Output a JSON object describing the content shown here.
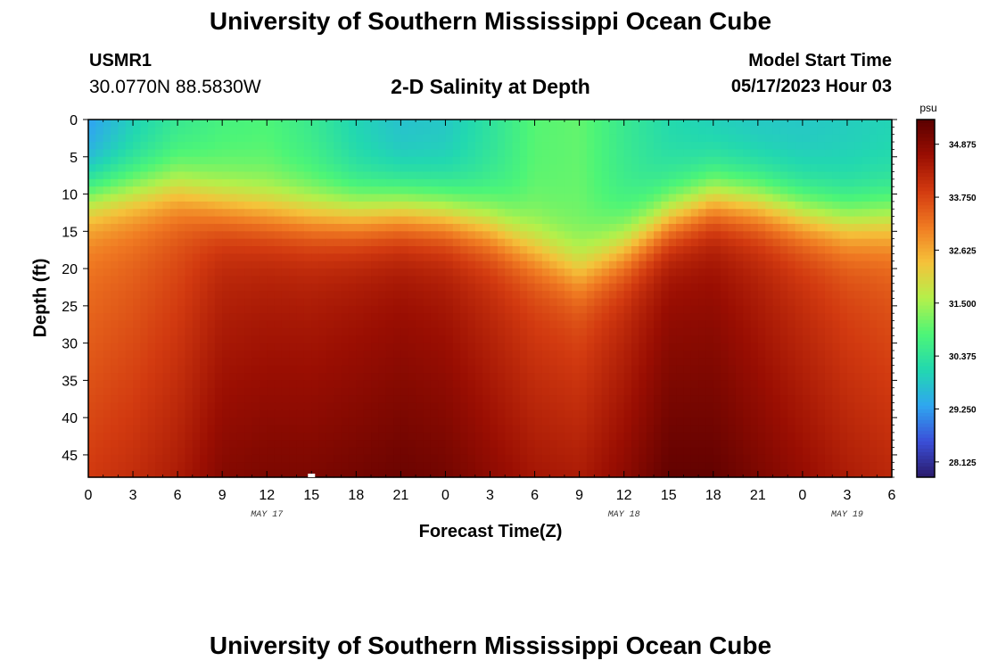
{
  "header": {
    "title": "University of Southern Mississippi Ocean Cube",
    "station_id": "USMR1",
    "coordinates": "30.0770N  88.5830W",
    "subtitle": "2-D Salinity at Depth",
    "model_start_label": "Model Start Time",
    "model_start_value": "05/17/2023 Hour 03"
  },
  "footer": {
    "title": "University of Southern Mississippi Ocean Cube"
  },
  "chart_data": {
    "type": "heatmap",
    "title": "2-D Salinity at Depth",
    "xlabel": "Forecast Time(Z)",
    "ylabel": "Depth (ft)",
    "x_hours_range": [
      0,
      54
    ],
    "x_tick_labels": [
      "0",
      "3",
      "6",
      "9",
      "12",
      "15",
      "18",
      "21",
      "0",
      "3",
      "6",
      "9",
      "12",
      "15",
      "18",
      "21",
      "0",
      "3",
      "6"
    ],
    "date_labels": [
      {
        "text": "MAY 17",
        "hour": 12
      },
      {
        "text": "MAY 18",
        "hour": 36
      },
      {
        "text": "MAY 19",
        "hour": 51
      }
    ],
    "y_range": [
      0,
      48
    ],
    "y_ticks": [
      0,
      5,
      10,
      15,
      20,
      25,
      30,
      35,
      40,
      45
    ],
    "colorbar": {
      "unit": "psu",
      "min": 27.8,
      "max": 35.4,
      "tick_values": [
        28.125,
        29.25,
        30.375,
        31.5,
        32.625,
        33.75,
        34.875
      ],
      "tick_labels": [
        "28.125",
        "29.250",
        "30.375",
        "31.500",
        "32.625",
        "33.750",
        "34.875"
      ],
      "colors": [
        "#2a1a6b",
        "#3b4fd8",
        "#2fa6f0",
        "#22d8b0",
        "#4df577",
        "#b4f04b",
        "#f5c23a",
        "#f07a22",
        "#d23a10",
        "#9a0e02",
        "#5a0000"
      ]
    },
    "profiles": {
      "hours": [
        0,
        3,
        6,
        9,
        12,
        15,
        18,
        21,
        24,
        27,
        30,
        33,
        36,
        39,
        42,
        45,
        48,
        51,
        54
      ],
      "surface": [
        29.2,
        29.9,
        30.4,
        30.7,
        30.8,
        30.5,
        30.0,
        29.7,
        29.8,
        30.3,
        30.9,
        31.0,
        30.5,
        30.1,
        29.9,
        29.8,
        29.8,
        29.9,
        30.0
      ],
      "halocline": [
        10.0,
        9.5,
        9.0,
        11.0,
        12.0,
        12.5,
        12.5,
        12.0,
        12.5,
        14.0,
        17.0,
        20.0,
        17.0,
        13.0,
        10.5,
        11.0,
        12.5,
        13.5,
        13.0
      ],
      "bottom": [
        33.9,
        34.1,
        34.4,
        34.9,
        35.0,
        35.0,
        35.1,
        35.2,
        35.1,
        34.8,
        34.5,
        34.4,
        34.8,
        35.3,
        35.3,
        35.0,
        34.7,
        34.4,
        34.2
      ]
    }
  }
}
